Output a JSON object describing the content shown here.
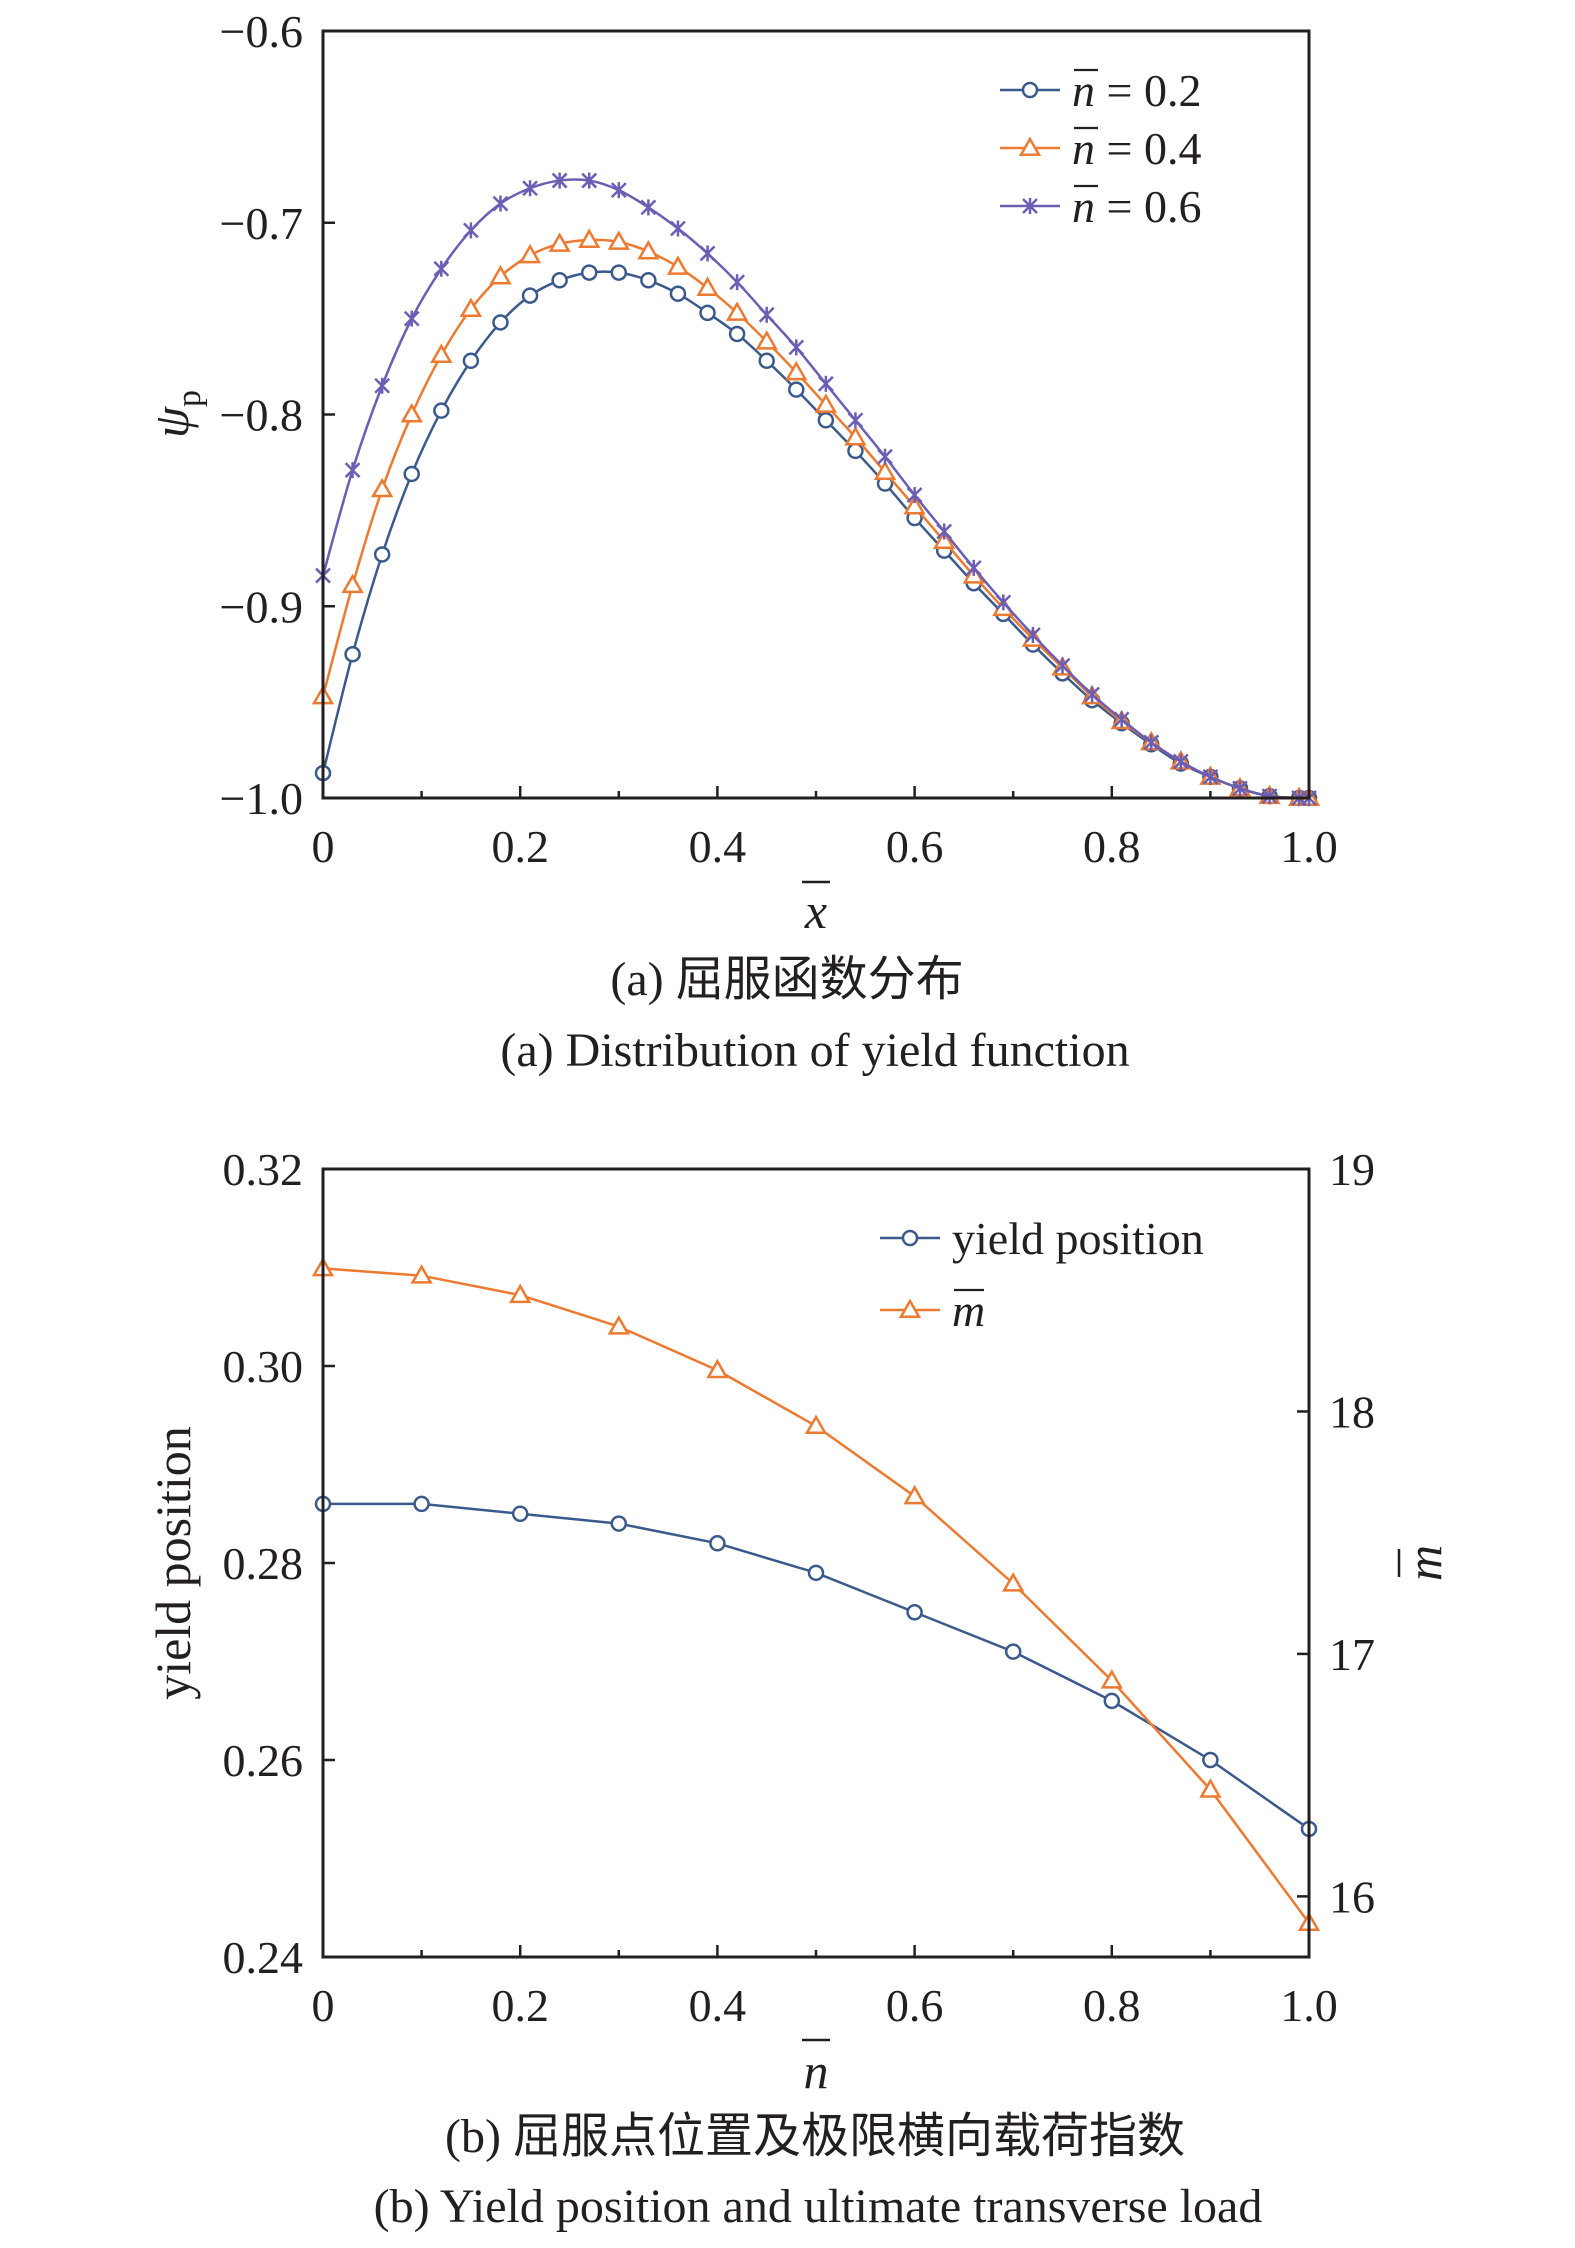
{
  "colors": {
    "blue": "#3b5a8c",
    "orange": "#ec7a30",
    "purple": "#6a5fb4",
    "axis": "#231f20"
  },
  "chart_data": [
    {
      "type": "line",
      "xlabel": "x",
      "ylabel": "ψp",
      "xlim": [
        0,
        1.0
      ],
      "ylim": [
        -1.0,
        -0.6
      ],
      "xticks": [
        "0",
        "0.2",
        "0.4",
        "0.6",
        "0.8",
        "1.0"
      ],
      "yticks": [
        "−0.6",
        "−0.7",
        "−0.8",
        "−0.9",
        "−1.0"
      ],
      "legend_placement": "top-right",
      "caption_cn": "(a) 屈服函数分布",
      "caption_en": "(a) Distribution of yield function",
      "x": [
        0,
        0.03,
        0.06,
        0.09,
        0.12,
        0.15,
        0.18,
        0.21,
        0.24,
        0.27,
        0.3,
        0.33,
        0.36,
        0.39,
        0.42,
        0.45,
        0.48,
        0.51,
        0.54,
        0.57,
        0.6,
        0.63,
        0.66,
        0.69,
        0.72,
        0.75,
        0.78,
        0.81,
        0.84,
        0.87,
        0.9,
        0.93,
        0.96,
        0.99,
        1.0
      ],
      "series": [
        {
          "name": "n = 0.2",
          "color": "blue",
          "marker": "circle",
          "values": [
            -0.987,
            -0.925,
            -0.873,
            -0.831,
            -0.798,
            -0.772,
            -0.752,
            -0.738,
            -0.73,
            -0.726,
            -0.726,
            -0.73,
            -0.737,
            -0.747,
            -0.758,
            -0.772,
            -0.787,
            -0.803,
            -0.819,
            -0.836,
            -0.854,
            -0.871,
            -0.888,
            -0.904,
            -0.92,
            -0.935,
            -0.949,
            -0.961,
            -0.972,
            -0.982,
            -0.989,
            -0.995,
            -0.999,
            -1.0,
            -1.0
          ]
        },
        {
          "name": "n = 0.4",
          "color": "orange",
          "marker": "triangle",
          "values": [
            -0.947,
            -0.889,
            -0.839,
            -0.8,
            -0.769,
            -0.745,
            -0.728,
            -0.717,
            -0.711,
            -0.709,
            -0.71,
            -0.715,
            -0.723,
            -0.734,
            -0.747,
            -0.762,
            -0.778,
            -0.795,
            -0.812,
            -0.83,
            -0.848,
            -0.866,
            -0.884,
            -0.901,
            -0.917,
            -0.932,
            -0.947,
            -0.96,
            -0.971,
            -0.981,
            -0.989,
            -0.995,
            -0.999,
            -1.0,
            -1.0
          ]
        },
        {
          "name": "n = 0.6",
          "color": "purple",
          "marker": "star",
          "values": [
            -0.884,
            -0.829,
            -0.785,
            -0.75,
            -0.724,
            -0.704,
            -0.69,
            -0.682,
            -0.678,
            -0.678,
            -0.683,
            -0.692,
            -0.703,
            -0.716,
            -0.731,
            -0.748,
            -0.765,
            -0.784,
            -0.803,
            -0.822,
            -0.842,
            -0.861,
            -0.88,
            -0.898,
            -0.915,
            -0.931,
            -0.946,
            -0.959,
            -0.971,
            -0.981,
            -0.989,
            -0.995,
            -0.999,
            -1.0,
            -1.0
          ]
        }
      ]
    },
    {
      "type": "line",
      "xlabel": "n",
      "ylabel": "yield position",
      "y2label": "m",
      "xlim": [
        0,
        1.0
      ],
      "ylim": [
        0.24,
        0.32
      ],
      "y2lim": [
        15.75,
        19.0
      ],
      "xticks": [
        "0",
        "0.2",
        "0.4",
        "0.6",
        "0.8",
        "1.0"
      ],
      "yticks": [
        "0.32",
        "0.30",
        "0.28",
        "0.26",
        "0.24"
      ],
      "y2ticks": [
        "19",
        "18",
        "17",
        "16"
      ],
      "legend_placement": "top-right",
      "caption_cn": "(b) 屈服点位置及极限横向载荷指数",
      "caption_en": "(b) Yield position and ultimate transverse load",
      "x": [
        0,
        0.1,
        0.2,
        0.3,
        0.4,
        0.5,
        0.6,
        0.7,
        0.8,
        0.9,
        1.0
      ],
      "series": [
        {
          "name": "yield position",
          "color": "blue",
          "marker": "circle",
          "axis": "left",
          "values": [
            0.286,
            0.286,
            0.285,
            0.284,
            0.282,
            0.279,
            0.275,
            0.271,
            0.266,
            0.26,
            0.253
          ]
        },
        {
          "name": "m",
          "color": "orange",
          "marker": "triangle",
          "axis": "right",
          "values": [
            18.59,
            18.56,
            18.48,
            18.35,
            18.17,
            17.94,
            17.65,
            17.29,
            16.89,
            16.44,
            15.89
          ]
        }
      ]
    }
  ]
}
